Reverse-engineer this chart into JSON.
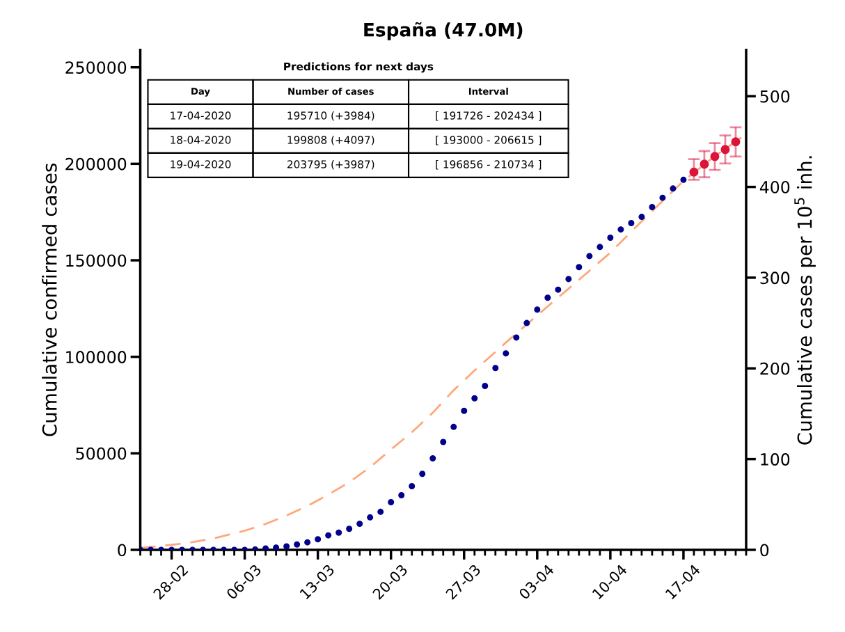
{
  "chart_data": {
    "type": "scatter",
    "title": "España (47.0M)",
    "ylabel": "Cumulative confirmed cases",
    "y2label": "Cumulative cases per 10$^{5}$ inh.",
    "series": [
      {
        "type": "line",
        "color": "#ffa77a",
        "line_style": "dashed",
        "marker": "none",
        "x": [
          "2020-02-25",
          "2020-02-28",
          "2020-03-01",
          "2020-03-03",
          "2020-03-06",
          "2020-03-08",
          "2020-03-10",
          "2020-03-12",
          "2020-03-14",
          "2020-03-16",
          "2020-03-18",
          "2020-03-20",
          "2020-03-22",
          "2020-03-24",
          "2020-03-26",
          "2020-03-28",
          "2020-03-31",
          "2020-04-03",
          "2020-04-05",
          "2020-04-07",
          "2020-04-10",
          "2020-04-13",
          "2020-04-15",
          "2020-04-17",
          "2020-04-20",
          "2020-04-23"
        ],
        "values": [
          1000,
          2600,
          4000,
          5900,
          9900,
          13400,
          17800,
          22700,
          28600,
          35000,
          42800,
          52000,
          60900,
          71000,
          82700,
          92900,
          107400,
          121500,
          130700,
          139900,
          154000,
          170200,
          180700,
          191100,
          204000,
          215300
        ]
      },
      {
        "type": "scatter",
        "color": "#00008b",
        "marker": "circle",
        "x": [
          "2020-02-25",
          "2020-02-26",
          "2020-02-27",
          "2020-02-28",
          "2020-02-29",
          "2020-03-01",
          "2020-03-02",
          "2020-03-03",
          "2020-03-04",
          "2020-03-05",
          "2020-03-06",
          "2020-03-07",
          "2020-03-08",
          "2020-03-09",
          "2020-03-10",
          "2020-03-11",
          "2020-03-12",
          "2020-03-13",
          "2020-03-14",
          "2020-03-15",
          "2020-03-16",
          "2020-03-17",
          "2020-03-18",
          "2020-03-19",
          "2020-03-20",
          "2020-03-21",
          "2020-03-22",
          "2020-03-23",
          "2020-03-24",
          "2020-03-25",
          "2020-03-26",
          "2020-03-27",
          "2020-03-28",
          "2020-03-29",
          "2020-03-30",
          "2020-03-31",
          "2020-04-01",
          "2020-04-02",
          "2020-04-03",
          "2020-04-04",
          "2020-04-05",
          "2020-04-06",
          "2020-04-07",
          "2020-04-08",
          "2020-04-09",
          "2020-04-10",
          "2020-04-11",
          "2020-04-12",
          "2020-04-13",
          "2020-04-14",
          "2020-04-15",
          "2020-04-16",
          "2020-04-17"
        ],
        "values": [
          0,
          0,
          0,
          0,
          0,
          0,
          0,
          0,
          0,
          0,
          0,
          200,
          700,
          1200,
          1800,
          2800,
          3900,
          5500,
          7500,
          8900,
          10900,
          13500,
          16800,
          19700,
          24700,
          28300,
          33000,
          39400,
          47400,
          55900,
          63700,
          72000,
          78500,
          84900,
          94200,
          101800,
          110000,
          117500,
          124500,
          130600,
          134800,
          140300,
          146500,
          152200,
          156900,
          161700,
          166000,
          169300,
          172500,
          177600,
          182400,
          187200,
          191700
        ]
      },
      {
        "color": "#dc143c",
        "marker": "circle",
        "x": [
          "2020-04-18",
          "2020-04-19",
          "2020-04-20",
          "2020-04-21",
          "2020-04-22"
        ],
        "values": [
          195710,
          199808,
          203795,
          207400,
          211400
        ],
        "errors": [
          [
            191726,
            202434
          ],
          [
            193000,
            206615
          ],
          [
            196856,
            210734
          ],
          [
            200200,
            214700
          ],
          [
            203800,
            218900
          ]
        ]
      }
    ],
    "xlim": [
      "2020-02-25",
      "2020-04-23"
    ],
    "xticks": [
      {
        "value": "2020-02-28",
        "label": "28-02"
      },
      {
        "value": "2020-03-06",
        "label": "06-03"
      },
      {
        "value": "2020-03-13",
        "label": "13-03"
      },
      {
        "value": "2020-03-20",
        "label": "20-03"
      },
      {
        "value": "2020-03-27",
        "label": "27-03"
      },
      {
        "value": "2020-04-03",
        "label": "03-04"
      },
      {
        "value": "2020-04-10",
        "label": "10-04"
      },
      {
        "value": "2020-04-17",
        "label": "17-04"
      }
    ],
    "ylim": [
      0,
      259000
    ],
    "yticks": [
      0,
      50000,
      100000,
      150000,
      200000,
      250000
    ],
    "y2lim": [
      0,
      551
    ],
    "y2ticks": [
      0,
      100,
      200,
      300,
      400,
      500
    ],
    "grid": false,
    "legend": false,
    "annotations": [
      "Predictions for next days",
      "Day",
      "Number of cases",
      "Interval",
      "17-04-2020",
      "195710 (+3984)",
      "[ 191726 - 202434 ]",
      "18-04-2020",
      "199808 (+4097)",
      "[ 193000 - 206615 ]",
      "19-04-2020",
      "203795 (+3987)",
      "[ 196856 - 210734 ]"
    ]
  }
}
